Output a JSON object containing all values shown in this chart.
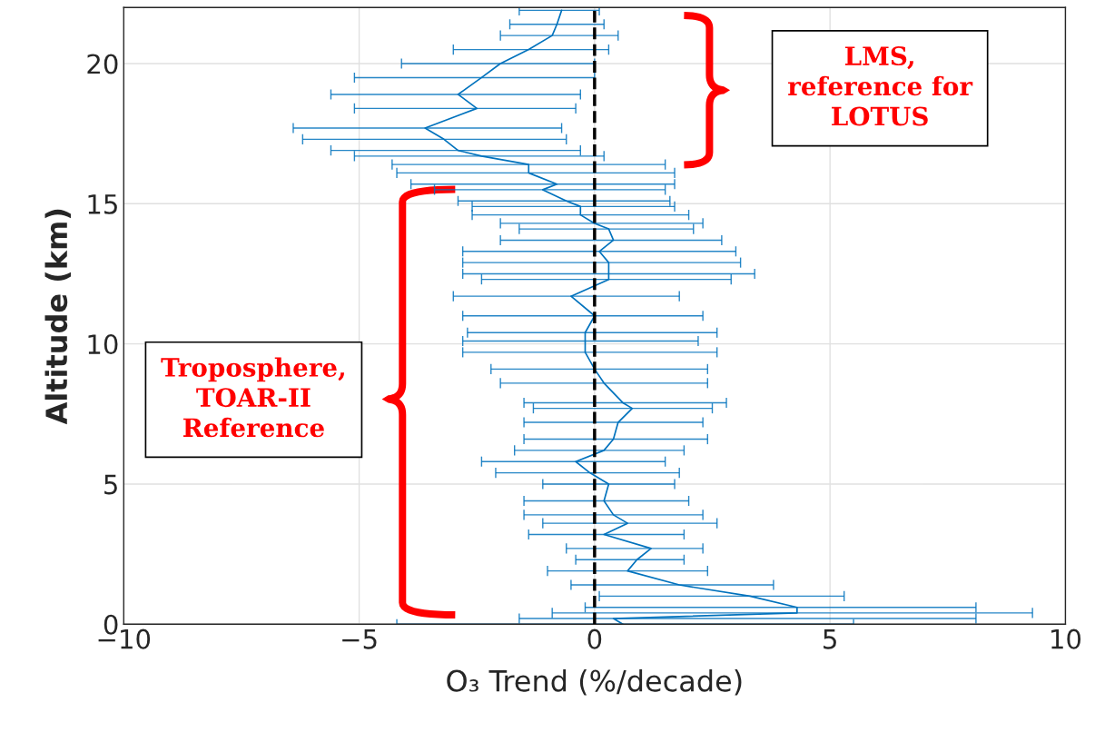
{
  "chart_data": {
    "type": "line",
    "xlabel": "O₃ Trend (%/decade)",
    "ylabel": "Altitude (km)",
    "xlim": [
      -10,
      10
    ],
    "xticks": [
      {
        "value": -10,
        "label": "−10"
      },
      {
        "value": -5,
        "label": "−5"
      },
      0,
      5,
      10
    ],
    "ylim": [
      0,
      22
    ],
    "yticks": [
      0,
      5,
      10,
      15,
      20
    ],
    "grid": true,
    "marker": "none",
    "line_style": "solid",
    "series": [
      {
        "color": "#0072bd",
        "x": [
          0.6,
          0.4,
          4.3,
          4.3,
          3.3,
          1.8,
          0.7,
          0.9,
          1.2,
          0.2,
          0.7,
          0.4,
          0.2,
          0.3,
          -0.1,
          -0.4,
          0.2,
          0.4,
          0.5,
          0.8,
          0.6,
          0.2,
          0.0,
          -0.2,
          -0.2,
          -0.2,
          0.0,
          -0.5,
          0.3,
          0.3,
          0.3,
          0.1,
          0.4,
          0.3,
          0.0,
          -0.3,
          -0.3,
          -0.6,
          -1.1,
          -0.8,
          -1.4,
          -1.4,
          -2.4,
          -2.9,
          -3.2,
          -3.6,
          -2.5,
          -2.9,
          -2.4,
          -2.0,
          -1.4,
          -0.9,
          -0.8,
          -0.7
        ],
        "values": [
          0.0,
          0.2,
          0.4,
          0.6,
          1.0,
          1.4,
          1.9,
          2.3,
          2.7,
          3.2,
          3.6,
          3.9,
          4.4,
          5.0,
          5.4,
          5.8,
          6.2,
          6.6,
          7.2,
          7.7,
          7.9,
          8.6,
          9.1,
          9.7,
          10.1,
          10.4,
          11.0,
          11.7,
          12.3,
          12.5,
          12.9,
          13.3,
          13.7,
          14.1,
          14.3,
          14.6,
          14.9,
          15.1,
          15.5,
          15.7,
          16.1,
          16.4,
          16.7,
          16.9,
          17.3,
          17.7,
          18.4,
          18.9,
          19.5,
          20.0,
          20.5,
          21.0,
          21.4,
          21.9
        ],
        "xerrors": [
          [
            -4.2,
            5.5
          ],
          [
            -1.6,
            8.1
          ],
          [
            -0.9,
            9.3
          ],
          [
            -0.2,
            8.1
          ],
          [
            0.1,
            5.3
          ],
          [
            -0.5,
            3.8
          ],
          [
            -1.0,
            2.4
          ],
          [
            -0.4,
            1.9
          ],
          [
            -0.6,
            2.3
          ],
          [
            -1.4,
            1.9
          ],
          [
            -1.1,
            2.6
          ],
          [
            -1.5,
            2.3
          ],
          [
            -1.5,
            2.0
          ],
          [
            -1.1,
            1.7
          ],
          [
            -2.1,
            1.8
          ],
          [
            -2.4,
            1.5
          ],
          [
            -1.7,
            1.9
          ],
          [
            -1.5,
            2.4
          ],
          [
            -1.5,
            2.3
          ],
          [
            -1.3,
            2.5
          ],
          [
            -1.5,
            2.8
          ],
          [
            -2.0,
            2.4
          ],
          [
            -2.2,
            2.4
          ],
          [
            -2.8,
            2.6
          ],
          [
            -2.8,
            2.2
          ],
          [
            -2.7,
            2.6
          ],
          [
            -2.8,
            2.3
          ],
          [
            -3.0,
            1.8
          ],
          [
            -2.4,
            2.9
          ],
          [
            -2.8,
            3.4
          ],
          [
            -2.8,
            3.1
          ],
          [
            -2.8,
            3.0
          ],
          [
            -2.0,
            2.7
          ],
          [
            -1.6,
            2.1
          ],
          [
            -2.0,
            2.3
          ],
          [
            -2.6,
            2.0
          ],
          [
            -2.6,
            1.7
          ],
          [
            -2.9,
            1.6
          ],
          [
            -3.4,
            1.5
          ],
          [
            -3.9,
            1.7
          ],
          [
            -4.2,
            1.7
          ],
          [
            -4.3,
            1.5
          ],
          [
            -5.1,
            0.2
          ],
          [
            -5.6,
            -0.3
          ],
          [
            -6.2,
            -0.6
          ],
          [
            -6.4,
            -0.7
          ],
          [
            -5.1,
            -0.4
          ],
          [
            -5.6,
            -0.3
          ],
          [
            -5.1,
            0.0
          ],
          [
            -4.1,
            0.0
          ],
          [
            -3.0,
            0.3
          ],
          [
            -2.0,
            0.5
          ],
          [
            -1.8,
            0.2
          ],
          [
            -1.6,
            0.1
          ]
        ]
      }
    ],
    "ref_lines": [
      {
        "axis": "x",
        "value": 0,
        "color": "#000000",
        "line_style": "dashed"
      }
    ],
    "annotations": [
      "LMS,\nreference for\nLOTUS",
      "Troposphere,\nTOAR-II\nReference"
    ]
  }
}
